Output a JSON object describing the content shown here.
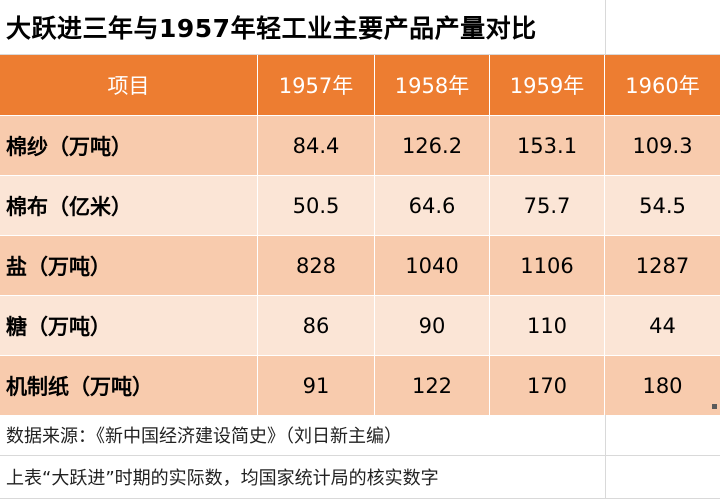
{
  "title": "大跃进三年与1957年轻工业主要产品产量对比",
  "headers": [
    "项目",
    "1957年",
    "1958年",
    "1959年",
    "1960年"
  ],
  "rows": [
    {
      "label": "棉纱（万吨）",
      "values": [
        "84.4",
        "126.2",
        "153.1",
        "109.3"
      ]
    },
    {
      "label": "棉布（亿米）",
      "values": [
        "50.5",
        "64.6",
        "75.7",
        "54.5"
      ]
    },
    {
      "label": "盐（万吨）",
      "values": [
        "828",
        "1040",
        "1106",
        "1287"
      ]
    },
    {
      "label": "糖（万吨）",
      "values": [
        "86",
        "90",
        "110",
        "44"
      ]
    },
    {
      "label": "机制纸（万吨）",
      "values": [
        "91",
        "122",
        "170",
        "180"
      ]
    }
  ],
  "notes": {
    "source": "数据来源：《新中国经济建设简史》（刘日新主编）",
    "remark": "上表“大跃进”时期的实际数，均国家统计局的核实数字"
  },
  "colors": {
    "header_bg": "#ed7d31",
    "band_dark": "#f8cbad",
    "band_light": "#fbe5d6",
    "header_text": "#ffffff"
  }
}
